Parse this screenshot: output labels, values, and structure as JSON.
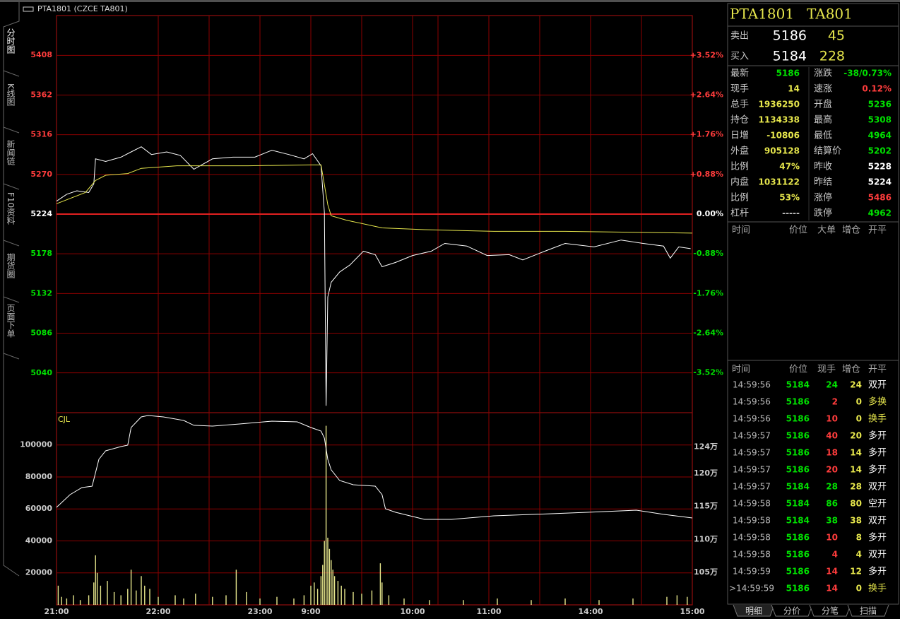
{
  "title": "PTA1801 (CZCE TA801)",
  "side_tabs": [
    "分时图",
    "K线图",
    "新闻链",
    "F10资料",
    "期货圈",
    "页面下单"
  ],
  "time_axis": {
    "xlim": [
      0,
      375
    ],
    "xticks": [
      {
        "value": 0,
        "label": "21:00"
      },
      {
        "value": 60,
        "label": "22:00"
      },
      {
        "value": 120,
        "label": "23:00"
      },
      {
        "value": 150,
        "label": "9:00"
      },
      {
        "value": 210,
        "label": "10:00"
      },
      {
        "value": 255,
        "label": "11:00"
      },
      {
        "value": 315,
        "label": "14:00"
      },
      {
        "value": 375,
        "label": "15:00"
      }
    ],
    "xgrid": [
      60,
      90,
      120,
      150,
      180,
      210,
      225,
      255,
      285,
      315,
      345
    ]
  },
  "price_chart": {
    "type": "line",
    "ylim": [
      4994,
      5454
    ],
    "yticks": [
      5408,
      5362,
      5316,
      5270,
      5224,
      5178,
      5132,
      5086,
      5040
    ],
    "y2lim": [
      -4.403,
      4.403
    ],
    "y2ticks": [
      {
        "value": 3.52,
        "label": "+3.52%"
      },
      {
        "value": 2.64,
        "label": "+2.64%"
      },
      {
        "value": 1.76,
        "label": "+1.76%"
      },
      {
        "value": 0.88,
        "label": "+0.88%"
      },
      {
        "value": 0,
        "label": "0.00%"
      },
      {
        "value": -0.88,
        "label": "-0.88%"
      },
      {
        "value": -1.76,
        "label": "-1.76%"
      },
      {
        "value": -2.64,
        "label": "-2.64%"
      },
      {
        "value": -3.52,
        "label": "-3.52%"
      }
    ],
    "up_color": "#ff3c3c",
    "down_color": "#00e000",
    "flat_color": "#ffffff",
    "grid_color": "#8b0000",
    "series": [
      {
        "color": "#ffffff",
        "x": [
          0,
          6,
          12,
          19,
          22,
          23,
          29,
          38,
          44,
          50,
          56,
          65,
          73,
          81,
          92,
          104,
          117,
          127,
          137,
          146,
          151,
          156,
          158,
          159,
          160,
          162,
          167,
          173,
          181,
          188,
          192,
          200,
          210,
          221,
          229,
          242,
          254,
          267,
          275,
          288,
          300,
          317,
          333,
          346,
          358,
          362,
          367,
          374
        ],
        "values": [
          5239,
          5247,
          5251,
          5249,
          5259,
          5288,
          5285,
          5290,
          5296,
          5302,
          5293,
          5296,
          5292,
          5276,
          5288,
          5290,
          5290,
          5298,
          5293,
          5288,
          5294,
          5280,
          5226,
          5002,
          5128,
          5145,
          5157,
          5165,
          5181,
          5177,
          5163,
          5168,
          5176,
          5181,
          5190,
          5187,
          5176,
          5177,
          5171,
          5181,
          5190,
          5186,
          5194,
          5190,
          5187,
          5173,
          5186,
          5184
        ]
      },
      {
        "color": "#e6e64c",
        "x": [
          0,
          17,
          23,
          29,
          42,
          50,
          71,
          113,
          150,
          156,
          160,
          162,
          171,
          192,
          217,
          258,
          300,
          375
        ],
        "values": [
          5236,
          5249,
          5263,
          5269,
          5271,
          5277,
          5280,
          5280,
          5281,
          5281,
          5235,
          5222,
          5217,
          5208,
          5206,
          5204,
          5204,
          5202
        ]
      }
    ]
  },
  "volume_chart": {
    "type": "bar",
    "label": "CJL",
    "ylim": [
      0,
      120200
    ],
    "yticks": [
      100000,
      80000,
      60000,
      40000,
      20000
    ],
    "y2lim": [
      1001000,
      1292000
    ],
    "y2ticks": [
      {
        "value": 1240000,
        "label": "124万"
      },
      {
        "value": 1200000,
        "label": "120万"
      },
      {
        "value": 1150000,
        "label": "115万"
      },
      {
        "value": 1100000,
        "label": "110万"
      },
      {
        "value": 1050000,
        "label": "105万"
      }
    ],
    "bars": {
      "color": "#e6e68c",
      "x": [
        1,
        3,
        6,
        10,
        14,
        19,
        22,
        23,
        24,
        26,
        30,
        34,
        38,
        42,
        44,
        47,
        50,
        52,
        55,
        60,
        70,
        75,
        82,
        92,
        100,
        106,
        112,
        120,
        130,
        140,
        146,
        150,
        152,
        154,
        156,
        157,
        158,
        159,
        160,
        161,
        162,
        163,
        164,
        166,
        168,
        170,
        175,
        180,
        186,
        191,
        192,
        196,
        205,
        220,
        240,
        260,
        280,
        300,
        320,
        340,
        360,
        366,
        372
      ],
      "values": [
        12000,
        5000,
        4000,
        6000,
        3000,
        6000,
        14000,
        31000,
        20000,
        12000,
        15000,
        8000,
        6000,
        10000,
        22000,
        9000,
        18000,
        12000,
        10000,
        5000,
        6000,
        4000,
        7000,
        5000,
        6000,
        22000,
        8000,
        4000,
        5000,
        4000,
        6000,
        12000,
        14000,
        10000,
        18000,
        25000,
        40000,
        112000,
        42000,
        35000,
        28000,
        22000,
        18000,
        15000,
        12000,
        10000,
        8000,
        7000,
        9000,
        26000,
        14000,
        6000,
        4000,
        3000,
        3000,
        4000,
        3000,
        4000,
        3000,
        4000,
        5000,
        6000,
        5000
      ]
    },
    "series": [
      {
        "color": "#ffffff",
        "axis": "y2",
        "x": [
          0,
          8,
          15,
          21,
          25,
          29,
          38,
          42,
          44,
          50,
          54,
          63,
          75,
          81,
          92,
          108,
          127,
          142,
          150,
          156,
          158,
          160,
          162,
          167,
          175,
          188,
          192,
          194,
          200,
          217,
          233,
          258,
          292,
          313,
          342,
          358,
          375
        ],
        "values": [
          1148600,
          1167900,
          1178600,
          1180700,
          1221400,
          1234200,
          1240700,
          1242800,
          1269500,
          1285600,
          1287700,
          1285600,
          1280200,
          1272800,
          1271700,
          1274900,
          1279200,
          1278100,
          1269500,
          1264200,
          1253500,
          1221400,
          1205400,
          1189300,
          1182900,
          1180700,
          1167900,
          1146500,
          1141200,
          1130500,
          1130500,
          1135800,
          1139000,
          1141200,
          1144400,
          1138000,
          1132600
        ]
      }
    ]
  },
  "quote": {
    "header": [
      "PTA1801",
      "TA801"
    ],
    "ask": {
      "label": "卖出",
      "price": "5186",
      "volume": "45"
    },
    "bid": {
      "label": "买入",
      "price": "5184",
      "volume": "228"
    },
    "stats": [
      [
        {
          "label": "最新",
          "value": "5186",
          "color": "#00e000"
        },
        {
          "label": "涨跌",
          "value": "-38/0.73%",
          "color": "#00e000"
        }
      ],
      [
        {
          "label": "现手",
          "value": "14",
          "color": "#e6e64c"
        },
        {
          "label": "速涨",
          "value": "0.12%",
          "color": "#ff3c3c"
        }
      ],
      [
        {
          "label": "总手",
          "value": "1936250",
          "color": "#e6e64c"
        },
        {
          "label": "开盘",
          "value": "5236",
          "color": "#00e000"
        }
      ],
      [
        {
          "label": "持仓",
          "value": "1134338",
          "color": "#e6e64c"
        },
        {
          "label": "最高",
          "value": "5308",
          "color": "#00e000"
        }
      ],
      [
        {
          "label": "日增",
          "value": "-10806",
          "color": "#e6e64c"
        },
        {
          "label": "最低",
          "value": "4964",
          "color": "#00e000"
        }
      ],
      [
        {
          "label": "外盘",
          "value": "905128",
          "color": "#e6e64c"
        },
        {
          "label": "结算价",
          "value": "5202",
          "color": "#00e000"
        }
      ],
      [
        {
          "label": "比例",
          "value": "47%",
          "color": "#e6e64c"
        },
        {
          "label": "昨收",
          "value": "5228",
          "color": "#ffffff"
        }
      ],
      [
        {
          "label": "内盘",
          "value": "1031122",
          "color": "#e6e64c"
        },
        {
          "label": "昨结",
          "value": "5224",
          "color": "#ffffff"
        }
      ],
      [
        {
          "label": "比例",
          "value": "53%",
          "color": "#e6e64c"
        },
        {
          "label": "涨停",
          "value": "5486",
          "color": "#ff3c3c"
        }
      ],
      [
        {
          "label": "杠杆",
          "value": "-----",
          "color": "#c0c0c0"
        },
        {
          "label": "跌停",
          "value": "4962",
          "color": "#00e000"
        }
      ]
    ]
  },
  "big_orders": {
    "headers": [
      "时间",
      "价位",
      "大单",
      "增仓",
      "开平"
    ]
  },
  "trades": {
    "headers": [
      "时间",
      "价位",
      "现手",
      "增仓",
      "开平"
    ],
    "rows": [
      {
        "time": "14:59:56",
        "price": "5184",
        "volume": "24",
        "oi": "24",
        "type": "双开",
        "volume_color": "#00e000",
        "type_color": "#ffffff"
      },
      {
        "time": "14:59:56",
        "price": "5186",
        "volume": "2",
        "oi": "0",
        "type": "多换",
        "volume_color": "#ff3c3c",
        "type_color": "#e6e64c"
      },
      {
        "time": "14:59:56",
        "price": "5186",
        "volume": "10",
        "oi": "0",
        "type": "换手",
        "volume_color": "#ff3c3c",
        "type_color": "#e6e64c"
      },
      {
        "time": "14:59:57",
        "price": "5186",
        "volume": "40",
        "oi": "20",
        "type": "多开",
        "volume_color": "#ff3c3c",
        "type_color": "#ffffff"
      },
      {
        "time": "14:59:57",
        "price": "5186",
        "volume": "18",
        "oi": "14",
        "type": "多开",
        "volume_color": "#ff3c3c",
        "type_color": "#ffffff"
      },
      {
        "time": "14:59:57",
        "price": "5186",
        "volume": "20",
        "oi": "14",
        "type": "多开",
        "volume_color": "#ff3c3c",
        "type_color": "#ffffff"
      },
      {
        "time": "14:59:57",
        "price": "5184",
        "volume": "28",
        "oi": "28",
        "type": "双开",
        "volume_color": "#00e000",
        "type_color": "#ffffff"
      },
      {
        "time": "14:59:58",
        "price": "5184",
        "volume": "86",
        "oi": "80",
        "type": "空开",
        "volume_color": "#00e000",
        "type_color": "#ffffff"
      },
      {
        "time": "14:59:58",
        "price": "5184",
        "volume": "38",
        "oi": "38",
        "type": "双开",
        "volume_color": "#00e000",
        "type_color": "#ffffff"
      },
      {
        "time": "14:59:58",
        "price": "5186",
        "volume": "10",
        "oi": "8",
        "type": "多开",
        "volume_color": "#ff3c3c",
        "type_color": "#ffffff"
      },
      {
        "time": "14:59:58",
        "price": "5186",
        "volume": "4",
        "oi": "4",
        "type": "双开",
        "volume_color": "#ff3c3c",
        "type_color": "#ffffff"
      },
      {
        "time": "14:59:59",
        "price": "5186",
        "volume": "14",
        "oi": "12",
        "type": "多开",
        "volume_color": "#ff3c3c",
        "type_color": "#ffffff"
      },
      {
        "time": ">14:59:59",
        "price": "5186",
        "volume": "14",
        "oi": "0",
        "type": "换手",
        "volume_color": "#ff3c3c",
        "type_color": "#e6e64c"
      }
    ]
  },
  "bottom_tabs": [
    "明细",
    "分价",
    "分笔",
    "扫描"
  ]
}
